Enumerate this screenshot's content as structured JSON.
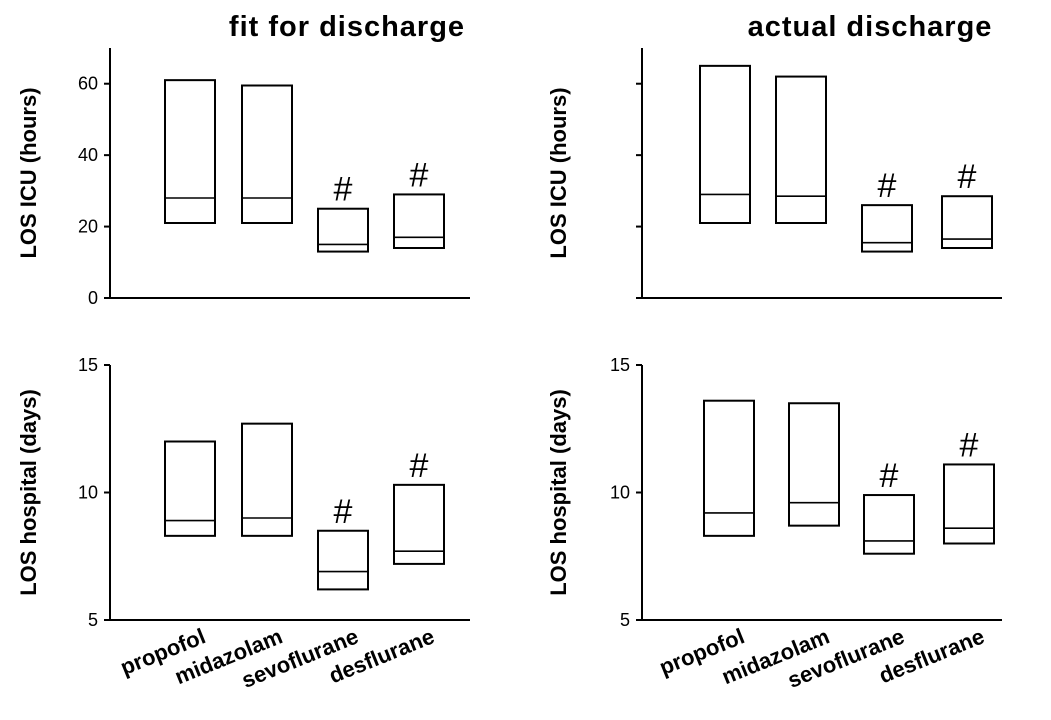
{
  "column_titles": [
    "fit for discharge",
    "actual discharge"
  ],
  "categories": [
    "propofol",
    "midazolam",
    "sevoflurane",
    "desflurane"
  ],
  "chart_data": [
    {
      "type": "box",
      "title": "fit for discharge",
      "ylabel": "LOS ICU (hours)",
      "ylim": [
        0,
        70
      ],
      "yticks": [
        0,
        20,
        40,
        60
      ],
      "categories": [
        "propofol",
        "midazolam",
        "sevoflurane",
        "desflurane"
      ],
      "boxes": [
        {
          "q1": 21,
          "median": 28,
          "q3": 61
        },
        {
          "q1": 21,
          "median": 28,
          "q3": 59.5
        },
        {
          "q1": 13,
          "median": 15,
          "q3": 25
        },
        {
          "q1": 14,
          "median": 17,
          "q3": 29
        }
      ],
      "annotations": [
        "",
        "",
        "#",
        "#"
      ]
    },
    {
      "type": "box",
      "title": "actual discharge",
      "ylabel": "LOS ICU (hours)",
      "ylim": [
        0,
        70
      ],
      "yticks": [
        0,
        20,
        40,
        60
      ],
      "show_tick_labels": false,
      "categories": [
        "propofol",
        "midazolam",
        "sevoflurane",
        "desflurane"
      ],
      "boxes": [
        {
          "q1": 21,
          "median": 29,
          "q3": 65
        },
        {
          "q1": 21,
          "median": 28.5,
          "q3": 62
        },
        {
          "q1": 13,
          "median": 15.5,
          "q3": 26
        },
        {
          "q1": 14,
          "median": 16.5,
          "q3": 28.5
        }
      ],
      "annotations": [
        "",
        "",
        "#",
        "#"
      ]
    },
    {
      "type": "box",
      "ylabel": "LOS hospital (days)",
      "ylim": [
        5,
        15
      ],
      "yticks": [
        5,
        10,
        15
      ],
      "categories": [
        "propofol",
        "midazolam",
        "sevoflurane",
        "desflurane"
      ],
      "boxes": [
        {
          "q1": 8.3,
          "median": 8.9,
          "q3": 12
        },
        {
          "q1": 8.3,
          "median": 9.0,
          "q3": 12.7
        },
        {
          "q1": 6.2,
          "median": 6.9,
          "q3": 8.5
        },
        {
          "q1": 7.2,
          "median": 7.7,
          "q3": 10.3
        }
      ],
      "annotations": [
        "",
        "",
        "#",
        "#"
      ]
    },
    {
      "type": "box",
      "ylabel": "LOS hospital (days)",
      "ylim": [
        5,
        15
      ],
      "yticks": [
        5,
        10,
        15
      ],
      "categories": [
        "propofol",
        "midazolam",
        "sevoflurane",
        "desflurane"
      ],
      "boxes": [
        {
          "q1": 8.3,
          "median": 9.2,
          "q3": 13.6
        },
        {
          "q1": 8.7,
          "median": 9.6,
          "q3": 13.5
        },
        {
          "q1": 7.6,
          "median": 8.1,
          "q3": 9.9
        },
        {
          "q1": 8.0,
          "median": 8.6,
          "q3": 11.1
        }
      ],
      "annotations": [
        "",
        "",
        "#",
        "#"
      ]
    }
  ]
}
